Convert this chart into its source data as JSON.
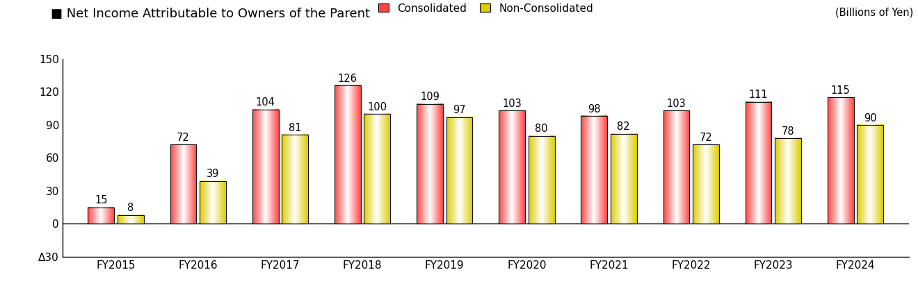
{
  "title": "Net Income Attributable to Owners of the Parent",
  "unit_label": "(Billions of Yen)",
  "categories": [
    "FY2015",
    "FY2016",
    "FY2017",
    "FY2018",
    "FY2019",
    "FY2020",
    "FY2021",
    "FY2022",
    "FY2023",
    "FY2024"
  ],
  "consolidated": [
    15,
    72,
    104,
    126,
    109,
    103,
    98,
    103,
    111,
    115
  ],
  "non_consolidated": [
    8,
    39,
    81,
    100,
    97,
    80,
    82,
    72,
    78,
    90
  ],
  "consolidated_color": "#FF4444",
  "consolidated_color_center": "#FFFFFF",
  "non_consolidated_color": "#DDCC00",
  "non_consolidated_color_center": "#FFFFFF",
  "bar_edge_color": "#111111",
  "ylim_min": -30,
  "ylim_max": 150,
  "yticks": [
    -30,
    0,
    30,
    60,
    90,
    120,
    150
  ],
  "ytick_labels": [
    "Δ30",
    "0",
    "30",
    "60",
    "90",
    "120",
    "150"
  ],
  "legend_consolidated": "Consolidated",
  "legend_non_consolidated": "Non-Consolidated",
  "bar_width": 0.32,
  "bar_gap": 0.04,
  "label_fontsize": 10.5,
  "axis_fontsize": 11,
  "title_fontsize": 13
}
